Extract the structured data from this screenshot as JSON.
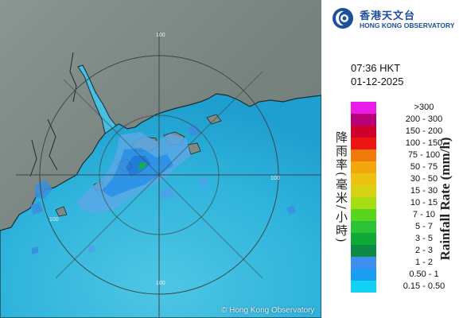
{
  "map": {
    "range_labels": [
      "100",
      "100",
      "100",
      "100"
    ],
    "credit": "© Hong Kong Observatory"
  },
  "header": {
    "logo_chinese": "香港天文台",
    "logo_english": "HONG KONG OBSERVATORY",
    "logo_icon": "hko-logo-icon"
  },
  "timestamp": {
    "time": "07:36 HKT",
    "date": "01-12-2025"
  },
  "legend": {
    "title_chinese": "降雨率(毫米/小時)",
    "title_english": "Rainfall Rate (mm/h)",
    "items": [
      {
        "label": ">300",
        "color": "#e91ce9"
      },
      {
        "label": "200 - 300",
        "color": "#b80078"
      },
      {
        "label": "150 - 200",
        "color": "#d0002c"
      },
      {
        "label": "100 - 150",
        "color": "#ee1411"
      },
      {
        "label": "75 - 100",
        "color": "#f07a0a"
      },
      {
        "label": "50 - 75",
        "color": "#f2a70d"
      },
      {
        "label": "30 - 50",
        "color": "#ecc111"
      },
      {
        "label": "15 - 30",
        "color": "#d7d312"
      },
      {
        "label": "10 - 15",
        "color": "#a6de14"
      },
      {
        "label": "7 - 10",
        "color": "#5ad51e"
      },
      {
        "label": "5 - 7",
        "color": "#2cc235"
      },
      {
        "label": "3 - 5",
        "color": "#0fa938"
      },
      {
        "label": "2 - 3",
        "color": "#0c8b44"
      },
      {
        "label": "1 - 2",
        "color": "#3f8ff0"
      },
      {
        "label": "0.50 - 1",
        "color": "#1a9ef2"
      },
      {
        "label": "0.15 - 0.50",
        "color": "#12d2f4"
      }
    ]
  }
}
